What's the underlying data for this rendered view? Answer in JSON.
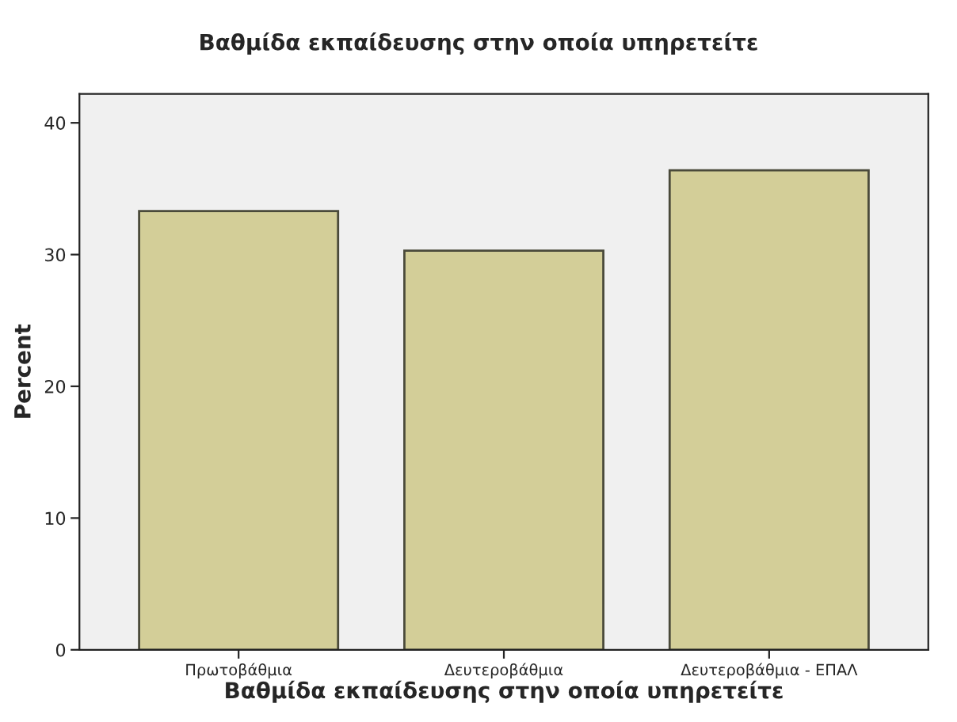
{
  "chart_data": {
    "type": "bar",
    "title": "Βαθμίδα εκπαίδευσης στην οποία υπηρετείτε",
    "xlabel": "Βαθμίδα εκπαίδευσης στην οποία υπηρετείτε",
    "ylabel": "Percent",
    "categories": [
      "Πρωτοβάθμια",
      "Δευτεροβάθμια",
      "Δευτεροβάθμια - ΕΠΑΛ"
    ],
    "values": [
      33.3,
      30.3,
      36.4
    ],
    "color": "#d3ce98",
    "ylim": [
      0,
      42.2
    ],
    "yticks": [
      0,
      10,
      20,
      30,
      40
    ],
    "grid": false
  }
}
